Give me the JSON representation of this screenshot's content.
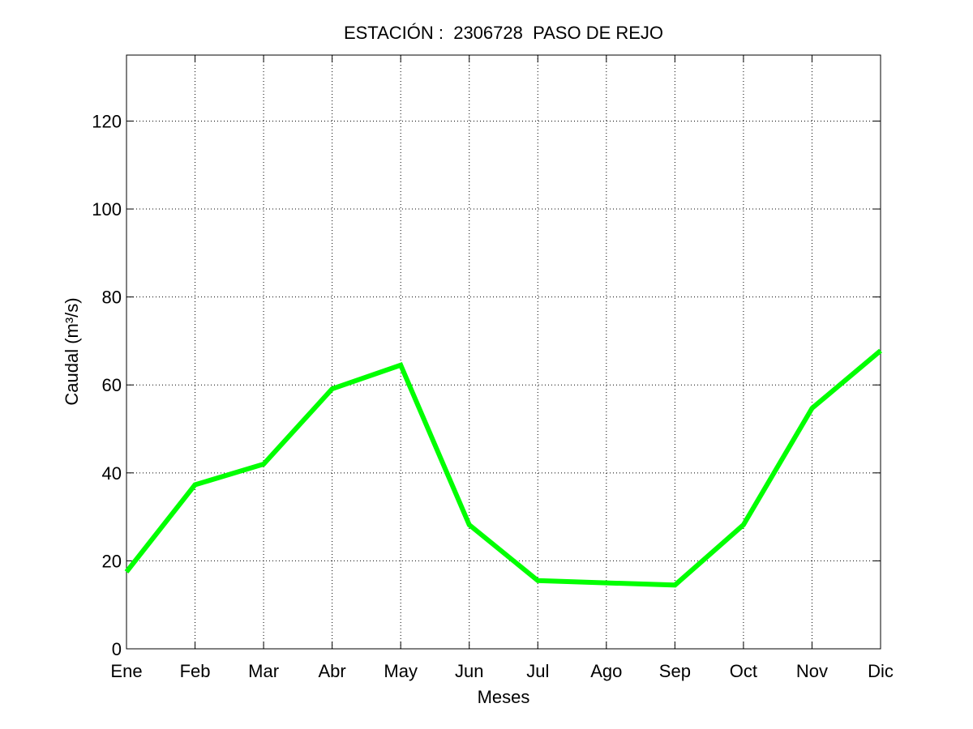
{
  "chart_data": {
    "type": "line",
    "title": "ESTACIÓN :  2306728  PASO DE REJO",
    "xlabel": "Meses",
    "ylabel": "Caudal (m³/s)",
    "categories": [
      "Ene",
      "Feb",
      "Mar",
      "Abr",
      "May",
      "Jun",
      "Jul",
      "Ago",
      "Sep",
      "Oct",
      "Nov",
      "Dic"
    ],
    "series": [
      {
        "values": [
          17.5,
          37.3,
          42.0,
          59.1,
          64.5,
          28.2,
          15.5,
          15.0,
          14.5,
          28.2,
          54.7,
          67.8
        ],
        "color": "#00ff00"
      }
    ],
    "ylim": [
      0,
      135
    ],
    "yticks": [
      0,
      20,
      40,
      60,
      80,
      100,
      120
    ],
    "grid": true,
    "legend": "none"
  }
}
